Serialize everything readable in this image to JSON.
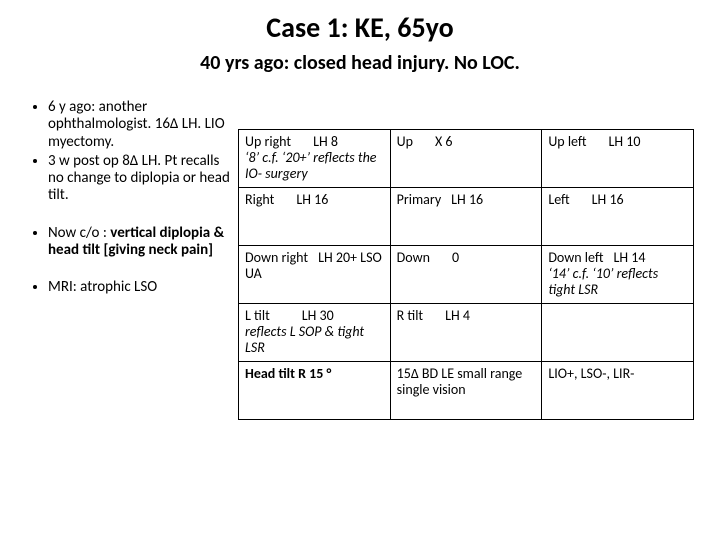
{
  "title": "Case 1: KE, 65yo",
  "subtitle": "40 yrs ago: closed head injury. No LOC.",
  "bullets": {
    "b1": "6 y ago: another ophthalmologist. 16∆ LH. LIO myectomy.",
    "b2": "3 w post op 8∆ LH. Pt recalls no change to diplopia or head tilt.",
    "b3a": "Now c/o : ",
    "b3b": "vertical diplopia &  head tilt [giving neck pain]",
    "b4": "MRI: atrophic LSO"
  },
  "table": {
    "r1c1a": "Up right",
    "r1c1b": "LH 8",
    "r1c1note": "‘8’ c.f. ‘20+’ reflects the IO- surgery",
    "r1c2a": "Up",
    "r1c2b": "X 6",
    "r1c3a": "Up left",
    "r1c3b": "LH 10",
    "r2c1a": "Right",
    "r2c1b": "LH 16",
    "r2c2a": "Primary",
    "r2c2b": "LH 16",
    "r2c3a": "Left",
    "r2c3b": "LH 16",
    "r3c1a": "Down right",
    "r3c1b": "LH 20+ LSO UA",
    "r3c2a": "Down",
    "r3c2b": "0",
    "r3c3a": "Down left",
    "r3c3b": "LH 14",
    "r3c3note": "‘14’ c.f. ‘10’ reflects tight LSR",
    "r4c1a": "L tilt",
    "r4c1b": "LH 30",
    "r4c1note": "reflects L SOP & tight LSR",
    "r4c2a": "R tilt",
    "r4c2b": "LH 4",
    "r4c3": "",
    "r5c1": "Head tilt R 15 °",
    "r5c2": "15∆ BD LE small range single vision",
    "r5c3": "LIO+, LSO-, LIR-"
  }
}
